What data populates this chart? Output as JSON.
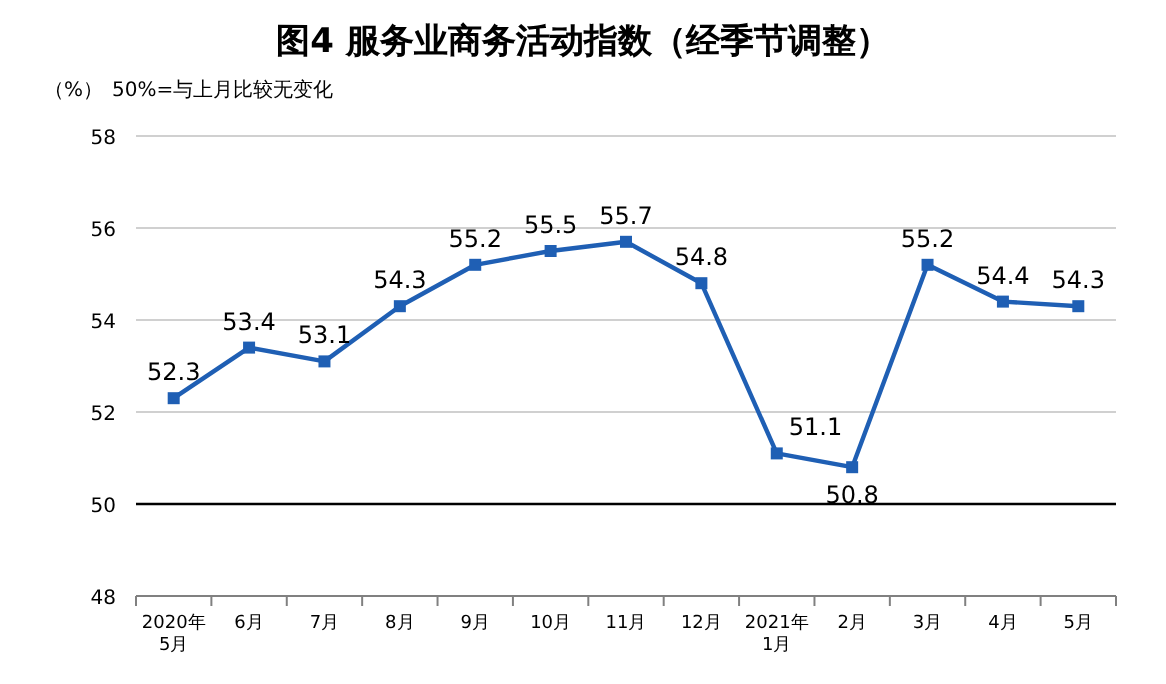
{
  "chart_data": {
    "type": "line",
    "title": "图4 服务业商务活动指数（经季节调整）",
    "ylabel": "（%）",
    "annotations": [
      "50%=与上月比较无变化"
    ],
    "categories": [
      "2020年\n5月",
      "6月",
      "7月",
      "8月",
      "9月",
      "10月",
      "11月",
      "12月",
      "2021年\n1月",
      "2月",
      "3月",
      "4月",
      "5月"
    ],
    "series": [
      {
        "color": "#1f5fb4",
        "values": [
          52.3,
          53.4,
          53.1,
          54.3,
          55.2,
          55.5,
          55.7,
          54.8,
          51.1,
          50.8,
          55.2,
          54.4,
          54.3
        ]
      }
    ],
    "ylim": [
      48,
      58
    ],
    "yticks": [
      48,
      50,
      52,
      54,
      56,
      58
    ],
    "grid": "y",
    "marker": "square",
    "line_style": "solid",
    "data_labels": true,
    "ref_lines": [
      {
        "axis": "y",
        "value": 50,
        "color": "#000000"
      }
    ]
  }
}
